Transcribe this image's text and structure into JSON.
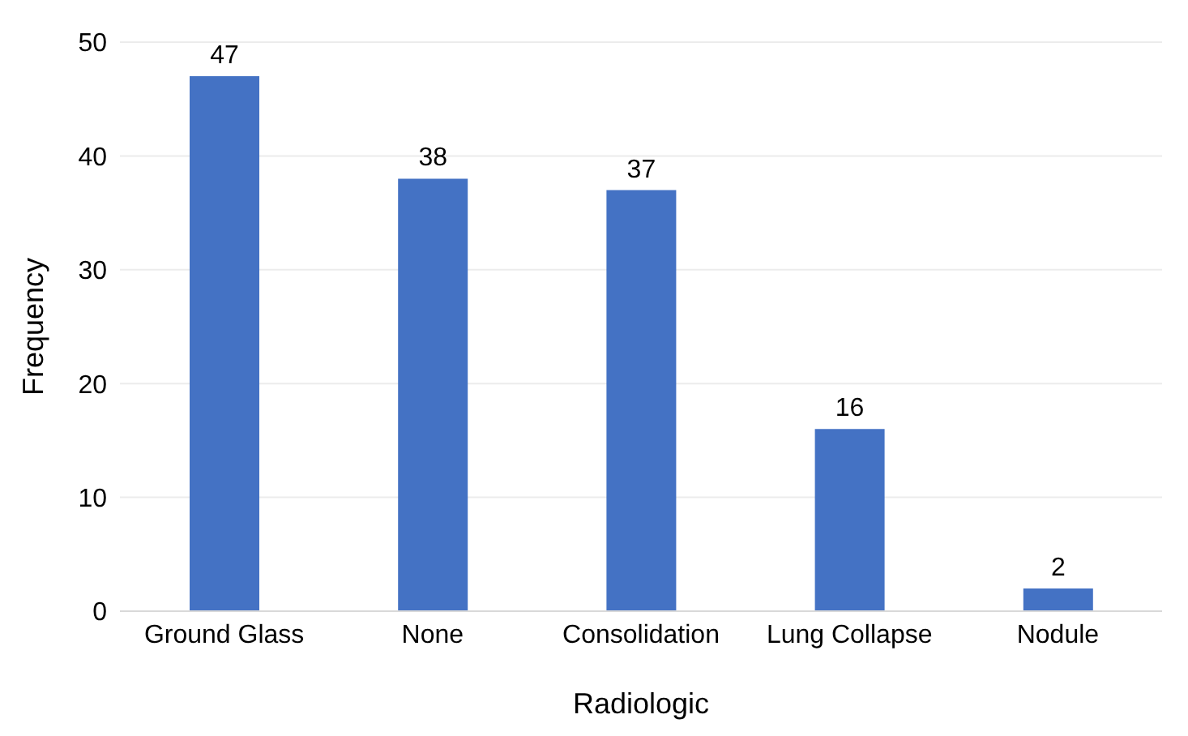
{
  "chart_data": {
    "type": "bar",
    "xlabel": "Radiologic",
    "ylabel": "Frequency",
    "categories": [
      "Ground Glass",
      "None",
      "Consolidation",
      "Lung Collapse",
      "Nodule"
    ],
    "values": [
      47,
      38,
      37,
      16,
      2
    ],
    "color": "#4472c4",
    "ylim": [
      0,
      50
    ],
    "yticks": [
      0,
      10,
      20,
      30,
      40,
      50
    ],
    "grid": "y",
    "data_labels": true
  }
}
